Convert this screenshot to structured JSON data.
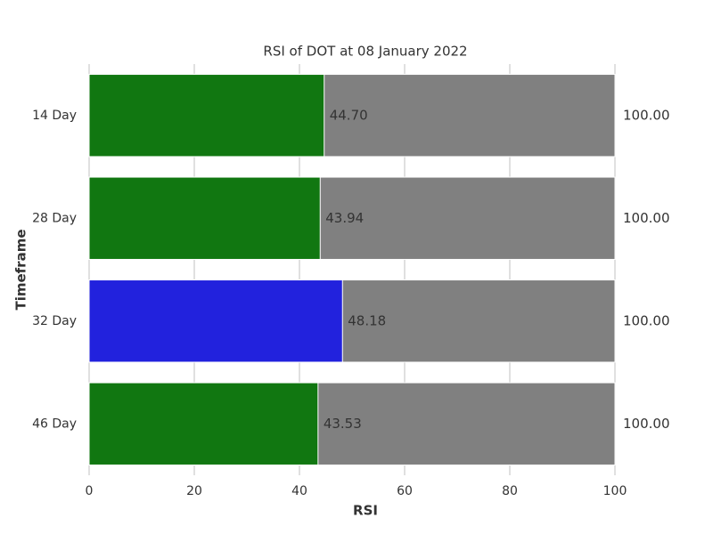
{
  "chart_data": {
    "type": "bar",
    "orientation": "horizontal",
    "title": "RSI of DOT at 08 January 2022",
    "xlabel": "RSI",
    "ylabel": "Timeframe",
    "categories": [
      "14 Day",
      "28 Day",
      "32 Day",
      "46 Day"
    ],
    "series": [
      {
        "color": "#808080",
        "values": [
          100,
          100,
          100,
          100
        ],
        "value_labels": [
          "100.00",
          "100.00",
          "100.00",
          "100.00"
        ]
      },
      {
        "colors": [
          "#117711",
          "#117711",
          "#2222dd",
          "#117711"
        ],
        "values": [
          44.7,
          43.94,
          48.18,
          43.53
        ],
        "value_labels": [
          "44.70",
          "43.94",
          "48.18",
          "43.53"
        ]
      }
    ],
    "xlim": [
      0,
      100
    ],
    "xticks": [
      0,
      20,
      40,
      60,
      80,
      100
    ],
    "grid": true
  }
}
